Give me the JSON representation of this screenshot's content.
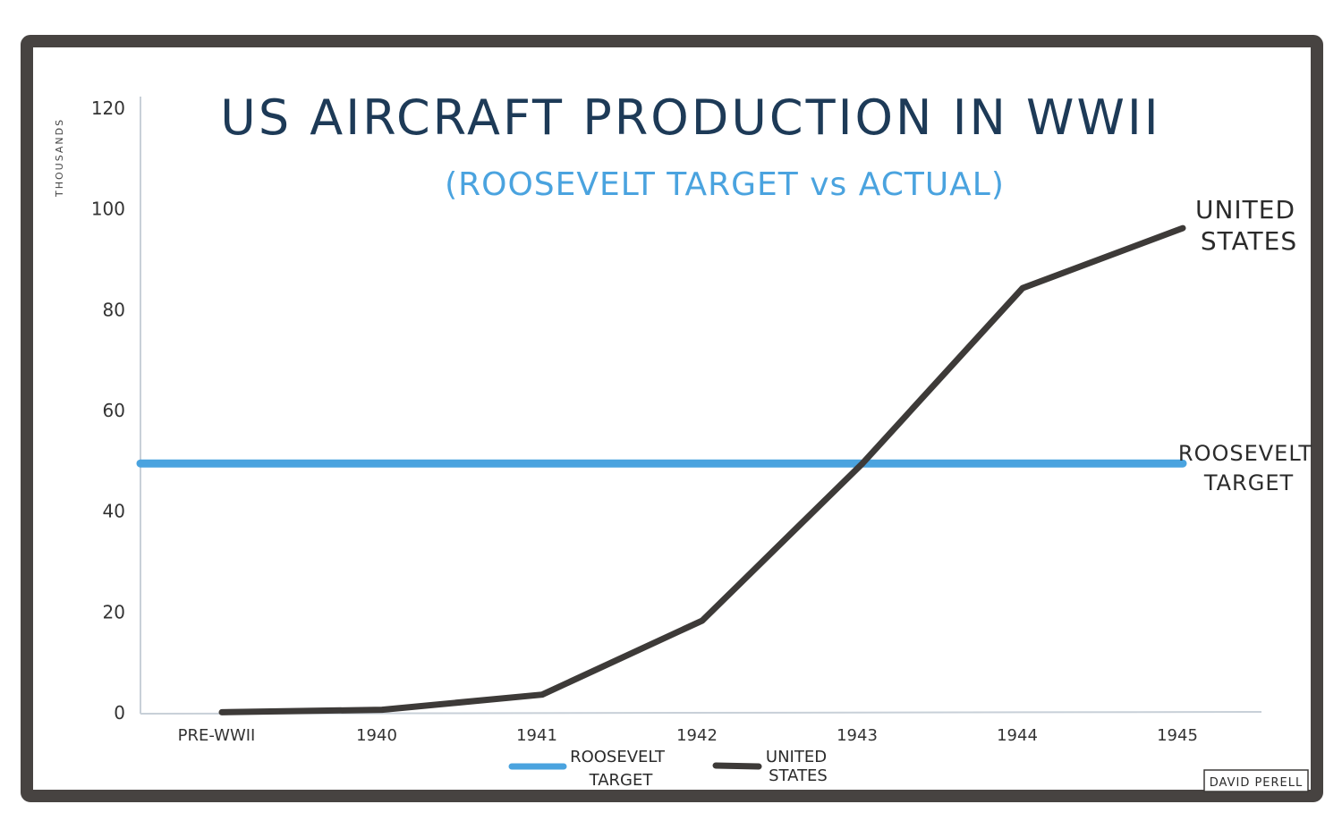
{
  "chart_data": {
    "type": "line",
    "title": "US AIRCRAFT PRODUCTION IN WWII",
    "subtitle": "(ROOSEVELT TARGET vs ACTUAL)",
    "ylabel": "THOUSANDS",
    "xlabel": "",
    "categories": [
      "PRE-WWII",
      "1940",
      "1941",
      "1942",
      "1943",
      "1944",
      "1945"
    ],
    "yticks": [
      "0",
      "20",
      "40",
      "60",
      "80",
      "100",
      "120"
    ],
    "ylim": [
      0,
      120
    ],
    "grid": false,
    "series": [
      {
        "name": "ROOSEVELT TARGET",
        "end_label": [
          "ROOSEVELT",
          "TARGET"
        ],
        "legend_label": [
          "ROOSEVELT",
          "TARGET"
        ],
        "color": "#4aa3df",
        "values": [
          49.5,
          49.5,
          49.5,
          49.5,
          49.5,
          49.5,
          49.5
        ]
      },
      {
        "name": "UNITED STATES",
        "end_label": [
          "UNITED",
          "STATES"
        ],
        "legend_label": [
          "UNITED",
          "STATES"
        ],
        "color": "#3d3a38",
        "values": [
          0.1,
          0.6,
          3.6,
          18.3,
          49.5,
          84.3,
          96.2
        ]
      }
    ],
    "legend_position": "bottom-center",
    "credit": "DAVID PERELL"
  }
}
